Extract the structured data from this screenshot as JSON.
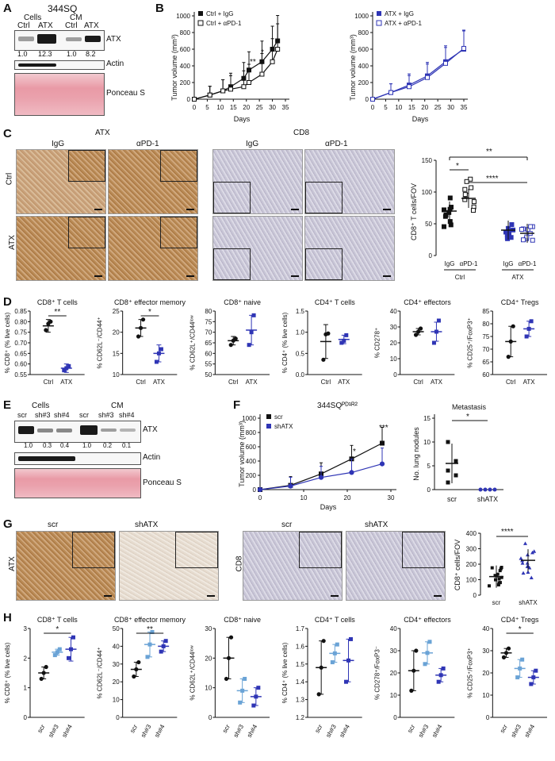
{
  "panels": {
    "A": {
      "label": "A",
      "title": "344SQ",
      "groups": [
        "Cells",
        "CM"
      ],
      "lanes": [
        "Ctrl",
        "ATX",
        "Ctrl",
        "ATX"
      ],
      "rows": [
        "ATX",
        "Actin",
        "Ponceau S"
      ],
      "quant": [
        "1.0",
        "12.3",
        "1.0",
        "8.2"
      ]
    },
    "B": {
      "label": "B",
      "left": {
        "ylabel": "Tumor volume (mm³)",
        "xlabel": "Days",
        "yticks": [
          "0",
          "200",
          "400",
          "600",
          "800",
          "1000"
        ],
        "xticks": [
          "0",
          "5",
          "10",
          "15",
          "20",
          "25",
          "30",
          "35"
        ],
        "series": [
          "Ctrl + IgG",
          "Ctrl + αPD-1"
        ],
        "stars": [
          "**",
          "*",
          "*"
        ]
      },
      "right": {
        "ylabel": "Tumor volume (mm³)",
        "xlabel": "Days",
        "yticks": [
          "0",
          "200",
          "400",
          "600",
          "800",
          "1000"
        ],
        "xticks": [
          "0",
          "5",
          "10",
          "15",
          "20",
          "25",
          "30",
          "35"
        ],
        "series": [
          "ATX + IgG",
          "ATX + αPD-1"
        ]
      }
    },
    "C": {
      "label": "C",
      "atx_header": "ATX",
      "cd8_header": "CD8",
      "cols": [
        "IgG",
        "αPD-1",
        "IgG",
        "αPD-1"
      ],
      "rows": [
        "Ctrl",
        "ATX"
      ],
      "plot": {
        "ylabel": "CD8⁺ T cells/FOV",
        "yticks": [
          "0",
          "50",
          "100",
          "150"
        ],
        "xlabels": [
          "IgG",
          "αPD-1",
          "IgG",
          "αPD-1"
        ],
        "groups": [
          "Ctrl",
          "ATX"
        ],
        "stars": [
          "*",
          "**",
          "****"
        ]
      }
    },
    "D": {
      "label": "D",
      "plots": [
        {
          "title": "CD8⁺ T cells",
          "ylabel": "% CD8⁺ (% live cells)",
          "yticks": [
            "0.55",
            "0.60",
            "0.65",
            "0.70",
            "0.75",
            "0.80",
            "0.85"
          ],
          "star": "**"
        },
        {
          "title": "CD8⁺ effector memory",
          "ylabel": "% CD62L⁻/CD44⁺",
          "yticks": [
            "10",
            "15",
            "20",
            "25"
          ],
          "star": "*"
        },
        {
          "title": "CD8⁺ naive",
          "ylabel": "% CD62L⁺/CD44ˡᵒʷ",
          "yticks": [
            "50",
            "55",
            "60",
            "65",
            "70",
            "75",
            "80"
          ],
          "star": ""
        },
        {
          "title": "CD4⁺ T cells",
          "ylabel": "% CD4⁺ (% live cells)",
          "yticks": [
            "0.0",
            "0.5",
            "1.0",
            "1.5"
          ],
          "star": ""
        },
        {
          "title": "CD4⁺ effectors",
          "ylabel": "% CD278⁺",
          "yticks": [
            "0",
            "10",
            "20",
            "30",
            "40"
          ],
          "star": ""
        },
        {
          "title": "CD4⁺ Tregs",
          "ylabel": "% CD25⁺/FoxP3⁺",
          "yticks": [
            "60",
            "65",
            "70",
            "75",
            "80",
            "85"
          ],
          "star": ""
        }
      ],
      "xlabels": [
        "Ctrl",
        "ATX"
      ]
    },
    "E": {
      "label": "E",
      "groups": [
        "Cells",
        "CM"
      ],
      "lanes": [
        "scr",
        "sh#3",
        "sh#4",
        "scr",
        "sh#3",
        "sh#4"
      ],
      "rows": [
        "ATX",
        "Actin",
        "Ponceau S"
      ],
      "quant": [
        "1.0",
        "0.3",
        "0.4",
        "1.0",
        "0.2",
        "0.1"
      ]
    },
    "F": {
      "label": "F",
      "left": {
        "title": "344SQᴾᴰ¹ᴿ²",
        "ylabel": "Tumor volume (mm³)",
        "xlabel": "Days",
        "yticks": [
          "0",
          "200",
          "400",
          "600",
          "800",
          "1000"
        ],
        "xticks": [
          "0",
          "10",
          "20",
          "30"
        ],
        "series": [
          "scr",
          "shATX"
        ],
        "stars": [
          "*",
          "***"
        ]
      },
      "right": {
        "title": "Metastasis",
        "ylabel": "No. lung nodules",
        "yticks": [
          "0",
          "5",
          "10",
          "15"
        ],
        "xlabels": [
          "scr",
          "shATX"
        ],
        "star": "*"
      }
    },
    "G": {
      "label": "G",
      "atx_label": "ATX",
      "cd8_label": "CD8",
      "cols": [
        "scr",
        "shATX",
        "scr",
        "shATX"
      ],
      "plot": {
        "ylabel": "CD8⁺ cells/FOV",
        "yticks": [
          "0",
          "100",
          "200",
          "300",
          "400"
        ],
        "xlabels": [
          "scr",
          "shATX"
        ],
        "star": "****"
      }
    },
    "H": {
      "label": "H",
      "plots": [
        {
          "title": "CD8⁺ T cells",
          "ylabel": "% CD8⁺ (% live cells)",
          "yticks": [
            "0",
            "1",
            "2",
            "3"
          ],
          "star": "*"
        },
        {
          "title": "CD8⁺ effector memory",
          "ylabel": "% CD62L⁻/CD44⁺",
          "yticks": [
            "0",
            "10",
            "20",
            "30",
            "40",
            "50"
          ],
          "star": "**"
        },
        {
          "title": "CD8⁺ naive",
          "ylabel": "% CD62L⁺/CD44ˡᵒʷ",
          "yticks": [
            "0",
            "10",
            "20",
            "30"
          ],
          "star": ""
        },
        {
          "title": "CD4⁺ T cells",
          "ylabel": "% CD4⁺ (% live cells)",
          "yticks": [
            "1.2",
            "1.3",
            "1.4",
            "1.5",
            "1.6",
            "1.7"
          ],
          "star": ""
        },
        {
          "title": "CD4⁺ effectors",
          "ylabel": "% CD278⁺/FoxP3⁻",
          "yticks": [
            "0",
            "10",
            "20",
            "30",
            "40"
          ],
          "star": ""
        },
        {
          "title": "CD4⁺ Tregs",
          "ylabel": "% CD25⁺/FoxP3⁺",
          "yticks": [
            "0",
            "10",
            "20",
            "30",
            "40"
          ],
          "star": "*"
        }
      ],
      "xlabels": [
        "scr",
        "sh#3",
        "sh#4"
      ]
    }
  },
  "chart_data": [
    {
      "id": "B-left",
      "type": "line",
      "xlabel": "Days",
      "ylabel": "Tumor volume (mm³)",
      "ylim": [
        0,
        1000
      ],
      "series": [
        {
          "name": "Ctrl + IgG",
          "x": [
            0,
            6,
            11,
            14,
            19,
            21,
            26,
            30,
            32
          ],
          "y": [
            0,
            50,
            100,
            150,
            250,
            350,
            450,
            600,
            700
          ]
        },
        {
          "name": "Ctrl + αPD-1",
          "x": [
            0,
            6,
            11,
            14,
            19,
            21,
            26,
            30,
            32
          ],
          "y": [
            0,
            50,
            100,
            120,
            150,
            200,
            300,
            450,
            600
          ]
        }
      ]
    },
    {
      "id": "B-right",
      "type": "line",
      "xlabel": "Days",
      "ylabel": "Tumor volume (mm³)",
      "ylim": [
        0,
        1000
      ],
      "series": [
        {
          "name": "ATX + IgG",
          "x": [
            0,
            7,
            14,
            21,
            28,
            35
          ],
          "y": [
            0,
            80,
            170,
            280,
            450,
            600
          ]
        },
        {
          "name": "ATX + αPD-1",
          "x": [
            0,
            7,
            14,
            21,
            28,
            35
          ],
          "y": [
            0,
            80,
            150,
            260,
            430,
            610
          ]
        }
      ]
    },
    {
      "id": "C-plot",
      "type": "scatter",
      "ylabel": "CD8⁺ T cells/FOV",
      "ylim": [
        0,
        150
      ],
      "categories": [
        "IgG",
        "αPD-1",
        "IgG",
        "αPD-1"
      ],
      "means": [
        70,
        90,
        40,
        35
      ]
    },
    {
      "id": "F-left",
      "type": "line",
      "xlabel": "Days",
      "ylabel": "Tumor volume (mm³)",
      "ylim": [
        0,
        1000
      ],
      "series": [
        {
          "name": "scr",
          "x": [
            0,
            7,
            14,
            21,
            28
          ],
          "y": [
            0,
            60,
            220,
            430,
            650
          ]
        },
        {
          "name": "shATX",
          "x": [
            0,
            7,
            14,
            21,
            28
          ],
          "y": [
            0,
            50,
            170,
            240,
            360
          ]
        }
      ]
    },
    {
      "id": "F-right",
      "type": "scatter",
      "ylabel": "No. lung nodules",
      "ylim": [
        0,
        15
      ],
      "categories": [
        "scr",
        "shATX"
      ],
      "means": [
        5.5,
        0
      ]
    },
    {
      "id": "G-plot",
      "type": "scatter",
      "ylabel": "CD8⁺ cells/FOV",
      "ylim": [
        0,
        400
      ],
      "categories": [
        "scr",
        "shATX"
      ],
      "means": [
        120,
        225
      ]
    }
  ],
  "d_data": [
    {
      "means": [
        0.78,
        0.58
      ],
      "sd": [
        0.03,
        0.02
      ],
      "pts": [
        [
          0.76,
          0.79,
          0.8
        ],
        [
          0.57,
          0.58,
          0.59
        ]
      ],
      "min": 0.55,
      "max": 0.85
    },
    {
      "means": [
        21,
        15
      ],
      "sd": [
        2,
        2
      ],
      "pts": [
        [
          19,
          21,
          23
        ],
        [
          13,
          15,
          16
        ]
      ],
      "min": 10,
      "max": 25
    },
    {
      "means": [
        66,
        71
      ],
      "sd": [
        2,
        7
      ],
      "pts": [
        [
          64,
          66,
          67
        ],
        [
          64,
          70,
          78
        ]
      ],
      "min": 50,
      "max": 80
    },
    {
      "means": [
        0.78,
        0.83
      ],
      "sd": [
        0.4,
        0.1
      ],
      "pts": [
        [
          0.35,
          0.95,
          0.97
        ],
        [
          0.75,
          0.8,
          0.93
        ]
      ],
      "min": 0,
      "max": 1.5
    },
    {
      "means": [
        27,
        27
      ],
      "sd": [
        2,
        6
      ],
      "pts": [
        [
          25,
          27,
          29
        ],
        [
          20,
          27,
          34
        ]
      ],
      "min": 0,
      "max": 40
    },
    {
      "means": [
        73,
        78
      ],
      "sd": [
        6,
        3
      ],
      "pts": [
        [
          67,
          73,
          79
        ],
        [
          75,
          78,
          81
        ]
      ],
      "min": 60,
      "max": 85
    }
  ],
  "h_data": [
    {
      "means": [
        1.5,
        2.2,
        2.3
      ],
      "sd": [
        0.2,
        0.1,
        0.4
      ],
      "pts": [
        [
          1.3,
          1.5,
          1.7
        ],
        [
          2.1,
          2.2,
          2.3
        ],
        [
          2.0,
          2.3,
          2.7
        ]
      ],
      "min": 0,
      "max": 3
    },
    {
      "means": [
        27,
        41,
        40
      ],
      "sd": [
        4,
        7,
        3
      ],
      "pts": [
        [
          23,
          27,
          31
        ],
        [
          34,
          41,
          48
        ],
        [
          37,
          40,
          43
        ]
      ],
      "min": 0,
      "max": 50
    },
    {
      "means": [
        20,
        9,
        7
      ],
      "sd": [
        7,
        4,
        3
      ],
      "pts": [
        [
          13,
          20,
          27
        ],
        [
          5,
          9,
          13
        ],
        [
          4,
          7,
          10
        ]
      ],
      "min": 0,
      "max": 30
    },
    {
      "means": [
        1.48,
        1.56,
        1.52
      ],
      "sd": [
        0.15,
        0.05,
        0.12
      ],
      "pts": [
        [
          1.33,
          1.48,
          1.63
        ],
        [
          1.51,
          1.56,
          1.61
        ],
        [
          1.4,
          1.52,
          1.64
        ]
      ],
      "min": 1.2,
      "max": 1.7
    },
    {
      "means": [
        21,
        29,
        19
      ],
      "sd": [
        9,
        5,
        3
      ],
      "pts": [
        [
          12,
          21,
          30
        ],
        [
          24,
          29,
          34
        ],
        [
          16,
          19,
          22
        ]
      ],
      "min": 0,
      "max": 40
    },
    {
      "means": [
        29,
        22,
        18
      ],
      "sd": [
        2,
        4,
        3
      ],
      "pts": [
        [
          27,
          29,
          31
        ],
        [
          18,
          22,
          26
        ],
        [
          15,
          18,
          21
        ]
      ],
      "min": 0,
      "max": 40
    }
  ],
  "colors": {
    "black": "#111111",
    "blue": "#2f35b5",
    "lightblue": "#6aa3d6"
  }
}
